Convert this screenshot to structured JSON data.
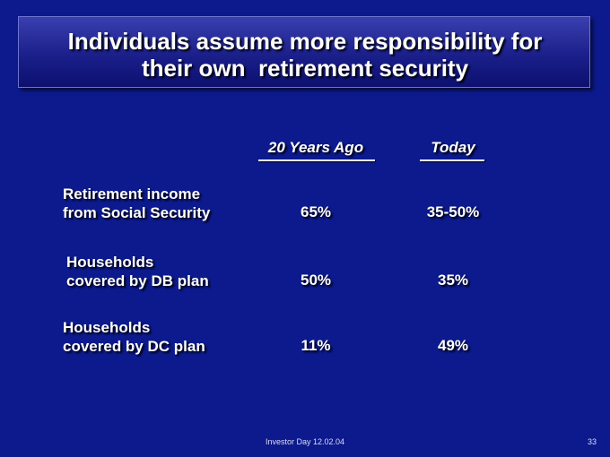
{
  "header": {
    "title": [
      "Individuals assume more responsibility for",
      "their own  retirement security"
    ]
  },
  "table": {
    "columns": [
      "20 Years Ago",
      "Today"
    ],
    "rows": [
      {
        "label": [
          "Retirement income",
          "from Social Security"
        ],
        "cells": [
          "65%",
          "35-50%"
        ]
      },
      {
        "label": [
          "Households",
          "covered by DB plan"
        ],
        "cells": [
          "50%",
          "35%"
        ]
      },
      {
        "label": [
          "Households",
          "covered by DC plan"
        ],
        "cells": [
          "11%",
          "49%"
        ]
      }
    ]
  },
  "footer": {
    "text": "Investor Day 12.02.04",
    "page": "33"
  }
}
